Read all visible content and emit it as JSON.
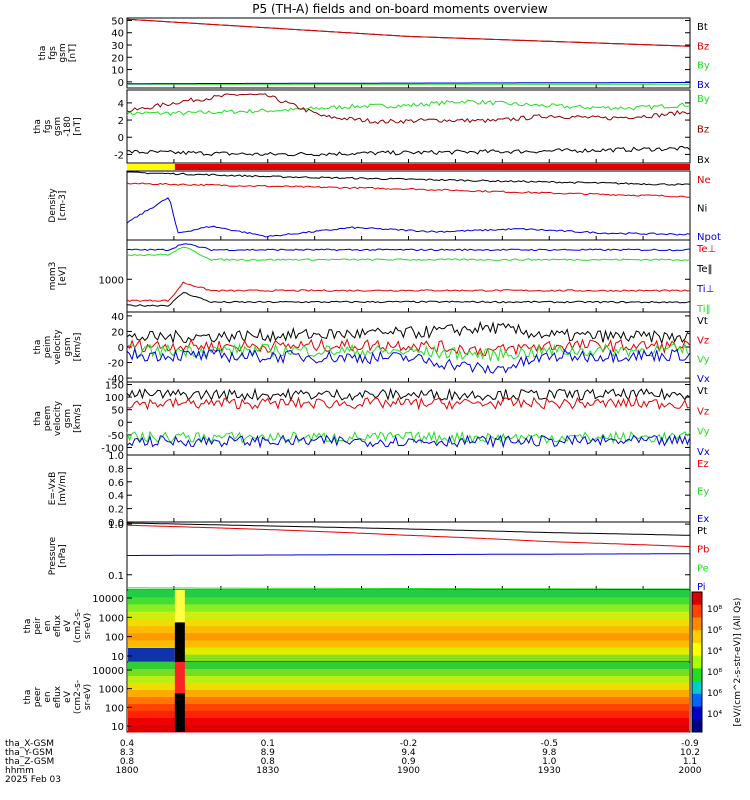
{
  "title": "P5 (TH-A) fields and on-board moments overview",
  "date_label": "2025 Feb 03",
  "colors": {
    "black": "#000000",
    "red": "#e00000",
    "darkred": "#8b0000",
    "green": "#22dd22",
    "blue": "#0000dd",
    "yellow": "#ffff00"
  },
  "chart_data": [
    {
      "id": "fgs_gsm_nT",
      "type": "line",
      "ylabel": [
        "tha",
        "fgs",
        "gsm",
        "[nT]"
      ],
      "yticks": [
        "50",
        "40",
        "30",
        "20",
        "10",
        "0"
      ],
      "ylim": [
        -5,
        52
      ],
      "series": [
        {
          "name": "Bt",
          "color": "#000000",
          "x": [
            18.0,
            18.5,
            19.0,
            19.5,
            20.0
          ],
          "y": [
            51,
            44,
            37,
            33,
            29
          ]
        },
        {
          "name": "Bz",
          "color": "#e00000",
          "x": [
            18.0,
            18.5,
            19.0,
            19.5,
            20.0
          ],
          "y": [
            51,
            44,
            37,
            33,
            29
          ]
        },
        {
          "name": "By",
          "color": "#22dd22",
          "x": [
            18.0,
            20.0
          ],
          "y": [
            -2,
            -2
          ]
        },
        {
          "name": "Bx",
          "color": "#0000dd",
          "x": [
            18.0,
            19.0,
            20.0
          ],
          "y": [
            -1.5,
            -1,
            -0.5
          ]
        }
      ]
    },
    {
      "id": "fgs_gsm_180",
      "type": "line",
      "ylabel": [
        "tha",
        "fgs",
        "gsm",
        "-180",
        "[nT]"
      ],
      "yticks": [
        "4",
        "2",
        "0",
        "-2"
      ],
      "ylim": [
        -3,
        5.5
      ],
      "series": [
        {
          "name": "By",
          "color": "#22dd22",
          "x": [
            18.0,
            18.2,
            18.4,
            18.6,
            18.8,
            19.0,
            19.2,
            19.4,
            19.6,
            19.8,
            20.0
          ],
          "y": [
            2.8,
            2.8,
            3.0,
            3.2,
            3.6,
            3.7,
            4.2,
            3.8,
            3.5,
            3.4,
            3.8
          ]
        },
        {
          "name": "Bz",
          "color": "#8b0000",
          "x": [
            18.0,
            18.2,
            18.4,
            18.5,
            18.7,
            18.9,
            19.1,
            19.3,
            19.5,
            19.7,
            19.9,
            20.0
          ],
          "y": [
            3.0,
            4.2,
            5.0,
            4.8,
            2.4,
            1.8,
            2.0,
            1.9,
            2.5,
            2.2,
            2.6,
            3.0
          ]
        },
        {
          "name": "Bx",
          "color": "#000000",
          "x": [
            18.0,
            18.5,
            19.0,
            19.5,
            20.0
          ],
          "y": [
            -1.7,
            -2.0,
            -1.8,
            -1.6,
            -1.3
          ]
        }
      ]
    },
    {
      "id": "density",
      "type": "line",
      "ylabel": [
        "Density",
        "[cm-3]"
      ],
      "ylim": [
        0,
        1
      ],
      "series": [
        {
          "name": "Ne",
          "color": "#e00000",
          "x": [
            18.0,
            18.5,
            19.0,
            19.5,
            20.0
          ],
          "y": [
            0.82,
            0.78,
            0.74,
            0.68,
            0.63
          ]
        },
        {
          "name": "Ni",
          "color": "#000000",
          "x": [
            18.0,
            18.5,
            19.0,
            19.5,
            20.0
          ],
          "y": [
            0.98,
            0.92,
            0.88,
            0.84,
            0.8
          ]
        },
        {
          "name": "Npot",
          "color": "#0000dd",
          "x": [
            18.0,
            18.15,
            18.18,
            18.3,
            18.5,
            18.8,
            19.1,
            19.4,
            19.7,
            20.0
          ],
          "y": [
            0.25,
            0.62,
            0.1,
            0.2,
            0.05,
            0.18,
            0.12,
            0.16,
            0.1,
            0.08
          ]
        }
      ]
    },
    {
      "id": "moments_eV",
      "type": "line",
      "ylabel": [
        "mom3",
        "[eV]"
      ],
      "yticks": [
        "1000"
      ],
      "ylim": [
        0,
        2200
      ],
      "series": [
        {
          "name": "Te⊥",
          "color": "#e00000",
          "x": [
            18.0,
            18.15,
            18.2,
            18.3,
            19.0,
            20.0
          ],
          "y": [
            350,
            350,
            900,
            650,
            660,
            650
          ]
        },
        {
          "name": "Te‖",
          "color": "#000000",
          "x": [
            18.0,
            18.15,
            18.2,
            18.3,
            19.0,
            20.0
          ],
          "y": [
            200,
            200,
            600,
            300,
            310,
            300
          ]
        },
        {
          "name": "Ti⊥",
          "color": "#0000dd",
          "x": [
            18.0,
            18.15,
            18.2,
            18.3,
            19.0,
            20.0
          ],
          "y": [
            1900,
            1900,
            2100,
            1900,
            1900,
            1900
          ]
        },
        {
          "name": "Ti‖",
          "color": "#22dd22",
          "x": [
            18.0,
            18.15,
            18.2,
            18.3,
            19.0,
            20.0
          ],
          "y": [
            1750,
            1750,
            2000,
            1600,
            1600,
            1600
          ]
        }
      ]
    },
    {
      "id": "peim_velocity",
      "type": "line",
      "ylabel": [
        "tha",
        "peim",
        "velocity",
        "gsm",
        "[km/s]"
      ],
      "yticks": [
        "40",
        "20",
        "0",
        "-20",
        "-40"
      ],
      "ylim": [
        -45,
        45
      ],
      "series": [
        {
          "name": "Vt",
          "color": "#000000",
          "x": [
            18.0,
            18.5,
            19.0,
            19.3,
            19.5,
            20.0
          ],
          "y": [
            12,
            15,
            18,
            25,
            15,
            12
          ]
        },
        {
          "name": "Vz",
          "color": "#e00000",
          "x": [
            18.0,
            18.5,
            19.0,
            19.3,
            19.5,
            20.0
          ],
          "y": [
            2,
            1,
            3,
            -5,
            2,
            1
          ]
        },
        {
          "name": "Vy",
          "color": "#22dd22",
          "x": [
            18.0,
            18.5,
            19.0,
            19.3,
            19.5,
            20.0
          ],
          "y": [
            -5,
            -4,
            -6,
            -10,
            -5,
            -4
          ]
        },
        {
          "name": "Vx",
          "color": "#0000dd",
          "x": [
            18.0,
            18.5,
            19.0,
            19.3,
            19.5,
            20.0
          ],
          "y": [
            -10,
            -12,
            -14,
            -30,
            -12,
            -10
          ]
        }
      ]
    },
    {
      "id": "peem_velocity",
      "type": "line",
      "ylabel": [
        "tha",
        "peem",
        "velocity",
        "gsm",
        "[km/s]"
      ],
      "yticks": [
        "150",
        "100",
        "50",
        "0",
        "-50",
        "-100"
      ],
      "ylim": [
        -130,
        160
      ],
      "series": [
        {
          "name": "Vt",
          "color": "#000000",
          "x": [
            18.0,
            19.0,
            20.0
          ],
          "y": [
            110,
            110,
            110
          ]
        },
        {
          "name": "Vz",
          "color": "#e00000",
          "x": [
            18.0,
            19.0,
            20.0
          ],
          "y": [
            75,
            75,
            75
          ]
        },
        {
          "name": "Vy",
          "color": "#22dd22",
          "x": [
            18.0,
            19.0,
            20.0
          ],
          "y": [
            -60,
            -60,
            -60
          ]
        },
        {
          "name": "Vx",
          "color": "#0000dd",
          "x": [
            18.0,
            19.0,
            20.0
          ],
          "y": [
            -75,
            -75,
            -75
          ]
        }
      ]
    },
    {
      "id": "efield",
      "type": "line",
      "ylabel": [
        "E=-VxB",
        "[mV/m]"
      ],
      "yticks": [
        "1.0",
        "0.8",
        "0.6",
        "0.4",
        "0.2",
        "0.0"
      ],
      "ylim": [
        0,
        1
      ],
      "series": [
        {
          "name": "Ez",
          "color": "#e00000",
          "x": [],
          "y": []
        },
        {
          "name": "Ey",
          "color": "#22dd22",
          "x": [],
          "y": []
        },
        {
          "name": "Ex",
          "color": "#0000dd",
          "x": [],
          "y": []
        }
      ]
    },
    {
      "id": "pressure",
      "type": "line",
      "ylabel": [
        "Pressure",
        "[nPa]"
      ],
      "yticks": [
        "1.0",
        "0.1"
      ],
      "log": true,
      "ylim": [
        0.05,
        1.1
      ],
      "series": [
        {
          "name": "Pt",
          "color": "#000000",
          "x": [
            18.0,
            18.5,
            19.0,
            19.5,
            20.0
          ],
          "y": [
            1.05,
            0.92,
            0.8,
            0.68,
            0.6
          ]
        },
        {
          "name": "Pb",
          "color": "#e00000",
          "x": [
            18.0,
            18.5,
            19.0,
            19.5,
            20.0
          ],
          "y": [
            0.95,
            0.78,
            0.6,
            0.45,
            0.36
          ]
        },
        {
          "name": "Pe",
          "color": "#22dd22",
          "x": [
            18.0,
            20.0
          ],
          "y": [
            0.055,
            0.052
          ]
        },
        {
          "name": "Pi",
          "color": "#0000dd",
          "x": [
            18.0,
            19.0,
            20.0
          ],
          "y": [
            0.24,
            0.25,
            0.26
          ]
        }
      ]
    },
    {
      "id": "peir_spectrogram",
      "type": "heatmap",
      "ylabel": [
        "tha",
        "peir",
        "en",
        "eflux",
        "eV",
        "(cm2-s-",
        "sr-eV)"
      ],
      "yticks": [
        "10000",
        "1000",
        "100",
        "10"
      ]
    },
    {
      "id": "peer_spectrogram",
      "type": "heatmap",
      "ylabel": [
        "tha",
        "peer",
        "en",
        "eflux",
        "eV",
        "(cm2-s-",
        "sr-eV)"
      ],
      "yticks": [
        "10000",
        "1000",
        "100",
        "10"
      ]
    }
  ],
  "colorbar": {
    "label": "[eV/(cm^2-s-str-eV)] (All Qs)",
    "ticks": [
      "10⁸",
      "10⁶",
      "10⁴",
      "10⁸",
      "10⁶",
      "10⁴"
    ]
  },
  "xaxis": {
    "rows": [
      {
        "label": "tha_X-GSM",
        "values": [
          "0.4",
          "0.1",
          "-0.2",
          "-0.5",
          "-0.9"
        ]
      },
      {
        "label": "tha_Y-GSM",
        "values": [
          "8.3",
          "8.9",
          "9.4",
          "9.8",
          "10.2"
        ]
      },
      {
        "label": "tha_Z-GSM",
        "values": [
          "0.8",
          "0.8",
          "0.9",
          "1.0",
          "1.1"
        ]
      },
      {
        "label": "hhmm",
        "values": [
          "1800",
          "1830",
          "1900",
          "1930",
          "2000"
        ]
      }
    ]
  }
}
